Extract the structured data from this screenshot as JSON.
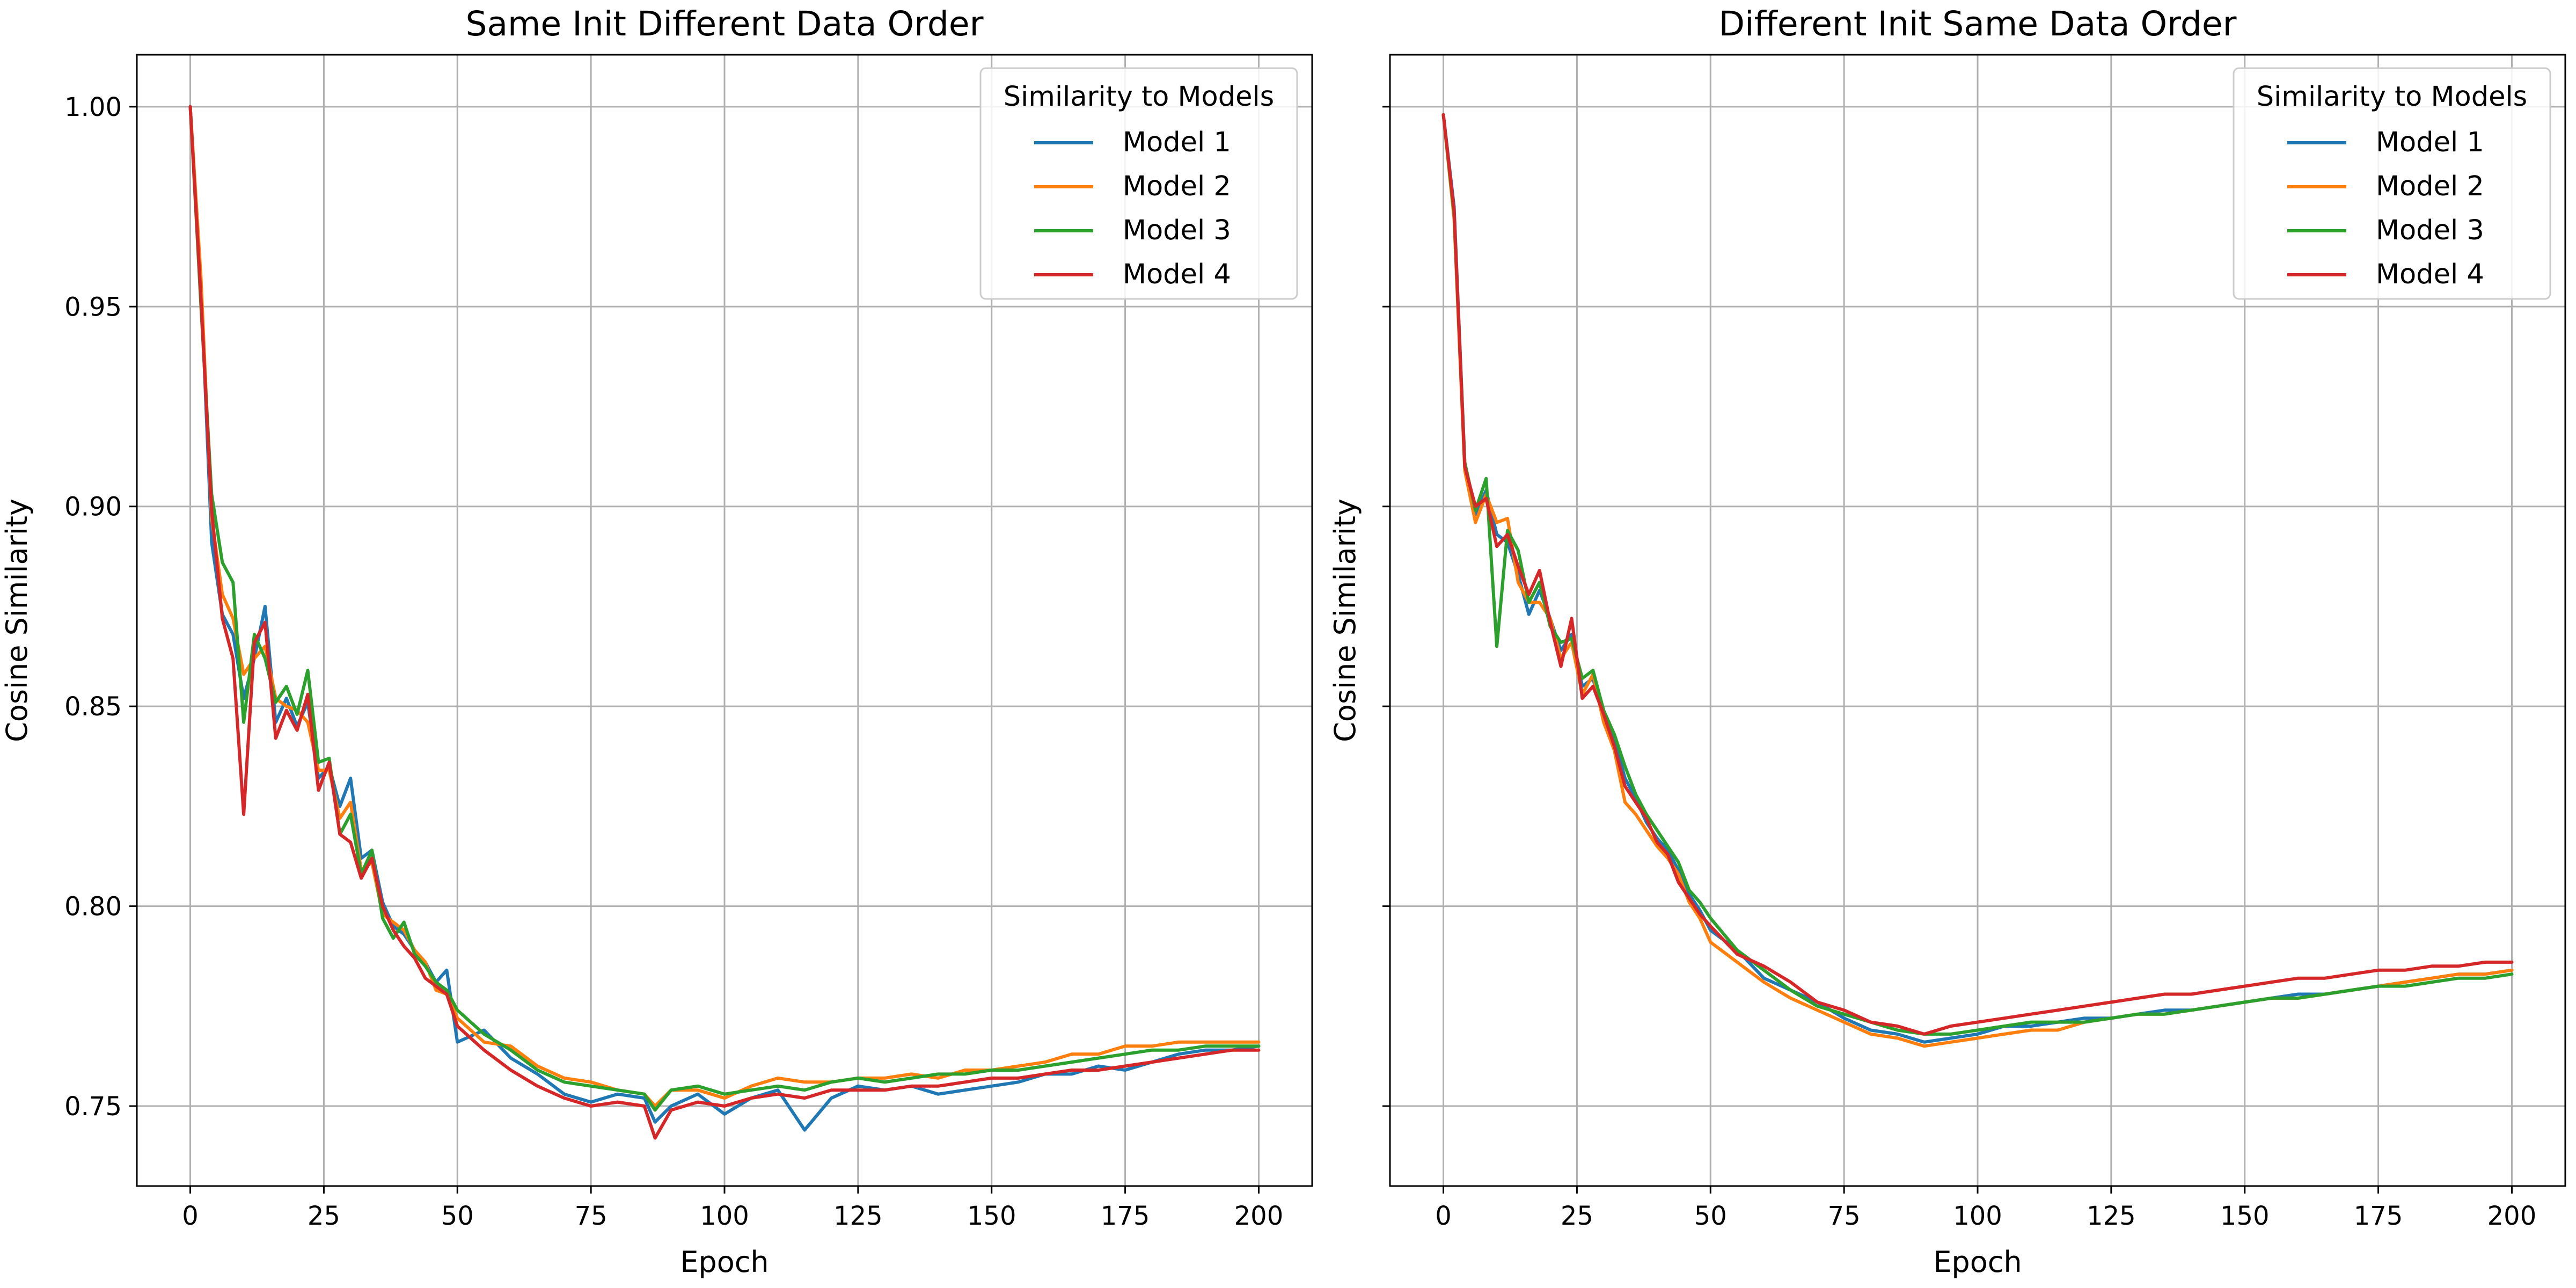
{
  "chart_data": [
    {
      "type": "line",
      "title": "Same Init Different Data Order",
      "xlabel": "Epoch",
      "ylabel": "Cosine Similarity",
      "xlim": [
        -10,
        210
      ],
      "ylim": [
        0.73,
        1.013
      ],
      "xticks": [
        0,
        25,
        50,
        75,
        100,
        125,
        150,
        175,
        200
      ],
      "yticks": [
        0.75,
        0.8,
        0.85,
        0.9,
        0.95,
        1.0
      ],
      "ytick_labels": [
        "0.75",
        "0.80",
        "0.85",
        "0.90",
        "0.95",
        "1.00"
      ],
      "grid": true,
      "legend": {
        "title": "Similarity to Models",
        "placement": "top-right"
      },
      "x": [
        0,
        2,
        4,
        6,
        8,
        10,
        12,
        14,
        16,
        18,
        20,
        22,
        24,
        26,
        28,
        30,
        32,
        34,
        36,
        38,
        40,
        42,
        44,
        46,
        48,
        50,
        55,
        60,
        65,
        70,
        75,
        80,
        85,
        87,
        90,
        95,
        100,
        105,
        110,
        115,
        120,
        125,
        130,
        135,
        140,
        145,
        150,
        155,
        160,
        165,
        170,
        175,
        180,
        185,
        190,
        195,
        200
      ],
      "series": [
        {
          "name": "Model 1",
          "color": "#1f77b4",
          "values": [
            1.0,
            0.955,
            0.891,
            0.873,
            0.868,
            0.852,
            0.862,
            0.875,
            0.846,
            0.852,
            0.845,
            0.851,
            0.832,
            0.835,
            0.825,
            0.832,
            0.812,
            0.814,
            0.801,
            0.795,
            0.793,
            0.789,
            0.786,
            0.781,
            0.784,
            0.766,
            0.769,
            0.762,
            0.758,
            0.753,
            0.751,
            0.753,
            0.752,
            0.746,
            0.75,
            0.753,
            0.748,
            0.752,
            0.754,
            0.744,
            0.752,
            0.755,
            0.754,
            0.755,
            0.753,
            0.754,
            0.755,
            0.756,
            0.758,
            0.758,
            0.76,
            0.759,
            0.761,
            0.763,
            0.764,
            0.764,
            0.765
          ]
        },
        {
          "name": "Model 2",
          "color": "#ff7f0e",
          "values": [
            1.0,
            0.957,
            0.897,
            0.878,
            0.872,
            0.858,
            0.862,
            0.865,
            0.852,
            0.85,
            0.849,
            0.846,
            0.834,
            0.834,
            0.822,
            0.826,
            0.809,
            0.811,
            0.798,
            0.796,
            0.794,
            0.789,
            0.786,
            0.779,
            0.778,
            0.772,
            0.766,
            0.765,
            0.76,
            0.757,
            0.756,
            0.754,
            0.753,
            0.75,
            0.754,
            0.754,
            0.752,
            0.755,
            0.757,
            0.756,
            0.756,
            0.757,
            0.757,
            0.758,
            0.757,
            0.759,
            0.759,
            0.76,
            0.761,
            0.763,
            0.763,
            0.765,
            0.765,
            0.766,
            0.766,
            0.766,
            0.766
          ]
        },
        {
          "name": "Model 3",
          "color": "#2ca02c",
          "values": [
            1.0,
            0.95,
            0.903,
            0.886,
            0.881,
            0.846,
            0.868,
            0.862,
            0.851,
            0.855,
            0.848,
            0.859,
            0.836,
            0.837,
            0.818,
            0.823,
            0.808,
            0.814,
            0.797,
            0.792,
            0.796,
            0.788,
            0.785,
            0.781,
            0.779,
            0.774,
            0.768,
            0.764,
            0.759,
            0.756,
            0.755,
            0.754,
            0.753,
            0.749,
            0.754,
            0.755,
            0.753,
            0.754,
            0.755,
            0.754,
            0.756,
            0.757,
            0.756,
            0.757,
            0.758,
            0.758,
            0.759,
            0.759,
            0.76,
            0.761,
            0.762,
            0.763,
            0.764,
            0.764,
            0.765,
            0.765,
            0.765
          ]
        },
        {
          "name": "Model 4",
          "color": "#d62728",
          "values": [
            1.0,
            0.952,
            0.899,
            0.872,
            0.862,
            0.823,
            0.866,
            0.871,
            0.842,
            0.849,
            0.844,
            0.853,
            0.829,
            0.836,
            0.818,
            0.816,
            0.807,
            0.812,
            0.8,
            0.794,
            0.79,
            0.787,
            0.782,
            0.78,
            0.778,
            0.77,
            0.764,
            0.759,
            0.755,
            0.752,
            0.75,
            0.751,
            0.75,
            0.742,
            0.749,
            0.751,
            0.75,
            0.752,
            0.753,
            0.752,
            0.754,
            0.754,
            0.754,
            0.755,
            0.755,
            0.756,
            0.757,
            0.757,
            0.758,
            0.759,
            0.759,
            0.76,
            0.761,
            0.762,
            0.763,
            0.764,
            0.764
          ]
        }
      ]
    },
    {
      "type": "line",
      "title": "Different Init Same Data Order",
      "xlabel": "Epoch",
      "ylabel": "Cosine Similarity",
      "xlim": [
        -10,
        210
      ],
      "ylim": [
        0.73,
        1.013
      ],
      "xticks": [
        0,
        25,
        50,
        75,
        100,
        125,
        150,
        175,
        200
      ],
      "yticks": [
        0.75,
        0.8,
        0.85,
        0.9,
        0.95,
        1.0
      ],
      "ytick_labels": [
        "",
        "",
        "",
        "",
        "",
        ""
      ],
      "grid": true,
      "legend": {
        "title": "Similarity to Models",
        "placement": "top-right"
      },
      "x": [
        0,
        2,
        4,
        6,
        8,
        10,
        12,
        14,
        16,
        18,
        20,
        22,
        24,
        26,
        28,
        30,
        32,
        34,
        36,
        38,
        40,
        42,
        44,
        46,
        48,
        50,
        55,
        60,
        65,
        70,
        75,
        80,
        85,
        90,
        95,
        100,
        105,
        110,
        115,
        120,
        125,
        130,
        135,
        140,
        145,
        150,
        155,
        160,
        165,
        170,
        175,
        180,
        185,
        190,
        195,
        200
      ],
      "series": [
        {
          "name": "Model 1",
          "color": "#1f77b4",
          "values": [
            0.998,
            0.975,
            0.911,
            0.898,
            0.904,
            0.893,
            0.891,
            0.883,
            0.873,
            0.879,
            0.872,
            0.864,
            0.868,
            0.855,
            0.857,
            0.847,
            0.842,
            0.832,
            0.827,
            0.821,
            0.817,
            0.814,
            0.809,
            0.803,
            0.799,
            0.794,
            0.789,
            0.782,
            0.779,
            0.776,
            0.772,
            0.769,
            0.768,
            0.766,
            0.767,
            0.768,
            0.77,
            0.77,
            0.771,
            0.772,
            0.772,
            0.773,
            0.774,
            0.774,
            0.775,
            0.776,
            0.777,
            0.778,
            0.778,
            0.779,
            0.78,
            0.781,
            0.782,
            0.783,
            0.783,
            0.784
          ]
        },
        {
          "name": "Model 2",
          "color": "#ff7f0e",
          "values": [
            0.998,
            0.972,
            0.909,
            0.896,
            0.903,
            0.896,
            0.897,
            0.881,
            0.876,
            0.876,
            0.872,
            0.862,
            0.866,
            0.853,
            0.858,
            0.846,
            0.839,
            0.826,
            0.823,
            0.819,
            0.815,
            0.812,
            0.808,
            0.801,
            0.797,
            0.791,
            0.786,
            0.781,
            0.777,
            0.774,
            0.771,
            0.768,
            0.767,
            0.765,
            0.766,
            0.767,
            0.768,
            0.769,
            0.769,
            0.771,
            0.772,
            0.773,
            0.773,
            0.774,
            0.775,
            0.776,
            0.777,
            0.777,
            0.778,
            0.779,
            0.78,
            0.781,
            0.782,
            0.783,
            0.783,
            0.784
          ]
        },
        {
          "name": "Model 3",
          "color": "#2ca02c",
          "values": [
            0.998,
            0.973,
            0.911,
            0.899,
            0.907,
            0.865,
            0.894,
            0.889,
            0.876,
            0.881,
            0.87,
            0.866,
            0.867,
            0.857,
            0.859,
            0.849,
            0.843,
            0.835,
            0.828,
            0.823,
            0.819,
            0.815,
            0.811,
            0.804,
            0.801,
            0.797,
            0.789,
            0.784,
            0.779,
            0.775,
            0.773,
            0.771,
            0.769,
            0.768,
            0.768,
            0.769,
            0.77,
            0.771,
            0.771,
            0.771,
            0.772,
            0.773,
            0.773,
            0.774,
            0.775,
            0.776,
            0.777,
            0.777,
            0.778,
            0.779,
            0.78,
            0.78,
            0.781,
            0.782,
            0.782,
            0.783
          ]
        },
        {
          "name": "Model 4",
          "color": "#d62728",
          "values": [
            0.998,
            0.974,
            0.91,
            0.9,
            0.902,
            0.89,
            0.893,
            0.885,
            0.878,
            0.884,
            0.871,
            0.86,
            0.872,
            0.852,
            0.855,
            0.848,
            0.84,
            0.83,
            0.826,
            0.822,
            0.816,
            0.813,
            0.806,
            0.802,
            0.798,
            0.795,
            0.788,
            0.785,
            0.781,
            0.776,
            0.774,
            0.771,
            0.77,
            0.768,
            0.77,
            0.771,
            0.772,
            0.773,
            0.774,
            0.775,
            0.776,
            0.777,
            0.778,
            0.778,
            0.779,
            0.78,
            0.781,
            0.782,
            0.782,
            0.783,
            0.784,
            0.784,
            0.785,
            0.785,
            0.786,
            0.786
          ]
        }
      ]
    }
  ]
}
